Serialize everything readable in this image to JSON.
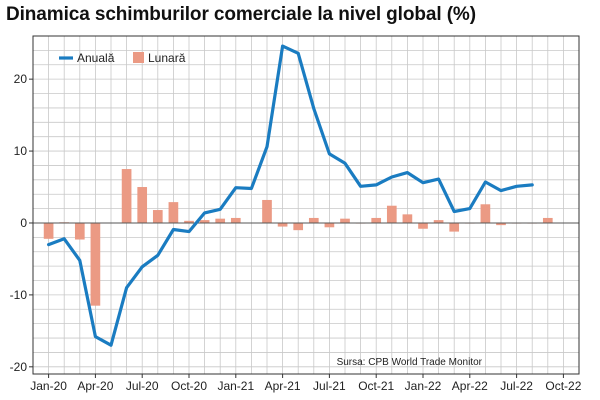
{
  "chart_data": {
    "type": "bar+line",
    "title": "Dinamica schimburilor comerciale la nivel global (%)",
    "source": "Sursa: CPB World Trade Monitor",
    "xlabel": "",
    "ylabel": "",
    "ylim": [
      -21,
      26
    ],
    "yticks": [
      -20,
      -10,
      0,
      10,
      20
    ],
    "grid": true,
    "legend_position": "top-left",
    "x_tick_labels": [
      "Jan-20",
      "Apr-20",
      "Jul-20",
      "Oct-20",
      "Jan-21",
      "Apr-21",
      "Jul-21",
      "Oct-21",
      "Jan-22",
      "Apr-22",
      "Jul-22",
      "Oct-22"
    ],
    "x_tick_months": [
      0,
      3,
      6,
      9,
      12,
      15,
      18,
      21,
      24,
      27,
      30,
      33
    ],
    "month_range": [
      -1,
      34
    ],
    "series": [
      {
        "name": "Anuală",
        "type": "line",
        "color": "#1a7cc1",
        "months": [
          0,
          1,
          2,
          3,
          4,
          5,
          6,
          7,
          8,
          9,
          10,
          11,
          12,
          13,
          14,
          15,
          16,
          17,
          18,
          19,
          20,
          21,
          22,
          23,
          24,
          25,
          26,
          27,
          28,
          29,
          30,
          31
        ],
        "values": [
          -3.0,
          -2.2,
          -5.2,
          -15.8,
          -17.0,
          -9.0,
          -6.1,
          -4.5,
          -0.9,
          -1.2,
          1.4,
          1.9,
          4.9,
          4.8,
          10.6,
          24.6,
          23.6,
          15.9,
          9.6,
          8.3,
          5.1,
          5.3,
          6.4,
          7.0,
          5.6,
          6.1,
          1.6,
          2.0,
          5.7,
          4.5,
          5.1,
          5.3
        ]
      },
      {
        "name": "Lunară",
        "type": "bar",
        "color": "#eb9a84",
        "months": [
          0,
          1,
          2,
          3,
          4,
          5,
          6,
          7,
          8,
          9,
          10,
          11,
          12,
          13,
          14,
          15,
          16,
          17,
          18,
          19,
          20,
          21,
          22,
          23,
          24,
          25,
          26,
          27,
          28,
          29,
          30,
          31,
          32
        ],
        "values": [
          -2.2,
          0.1,
          -2.3,
          -11.5,
          null,
          7.5,
          5.0,
          1.8,
          2.9,
          0.3,
          0.4,
          0.6,
          0.7,
          null,
          3.2,
          -0.5,
          -1.0,
          0.7,
          -0.6,
          0.6,
          0.0,
          0.7,
          2.4,
          1.2,
          -0.8,
          0.4,
          -1.2,
          0.0,
          2.6,
          -0.3,
          0.0,
          0.0,
          0.7
        ]
      }
    ]
  }
}
